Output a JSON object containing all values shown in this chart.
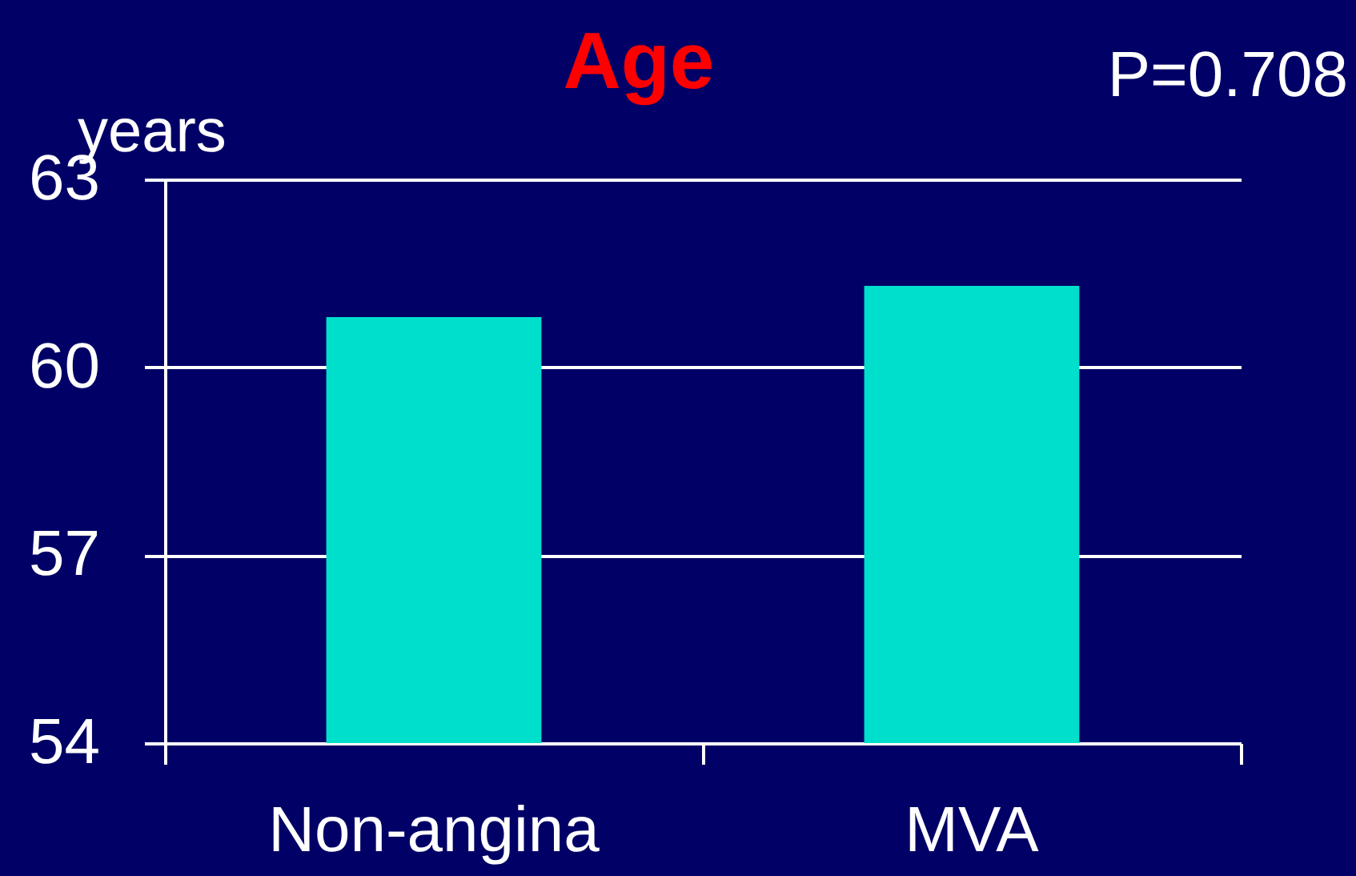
{
  "chart_data": {
    "type": "bar",
    "title": "Age",
    "ylabel": "years",
    "categories": [
      "Non-angina",
      "MVA"
    ],
    "values": [
      60.8,
      61.3
    ],
    "color": "#00dfcc",
    "ylim": [
      54,
      63
    ],
    "yticks": [
      54,
      57,
      60,
      63
    ],
    "grid": "y",
    "annotations": [
      "P=0.708"
    ]
  }
}
